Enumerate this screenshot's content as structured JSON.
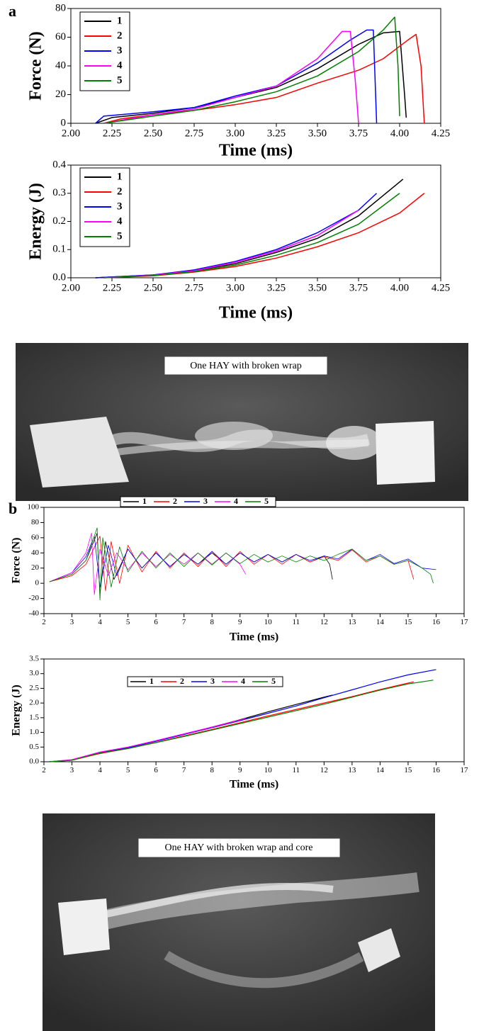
{
  "panels": [
    {
      "label": "a",
      "photo_caption": "One HAY with broken wrap"
    },
    {
      "label": "b",
      "photo_caption": "One HAY with broken wrap and core"
    }
  ],
  "chart_data": [
    {
      "type": "line",
      "xlabel": "Time (ms)",
      "ylabel": "Force (N)",
      "legend": "upper left",
      "xlim": [
        2,
        4.25
      ],
      "ylim": [
        0,
        80
      ],
      "xticks": [
        {
          "value": 2,
          "label": "2.00"
        },
        2.25,
        {
          "value": 2.5,
          "label": "2.50"
        },
        2.75,
        {
          "value": 3,
          "label": "3.00"
        },
        3.25,
        {
          "value": 3.5,
          "label": "3.50"
        },
        3.75,
        {
          "value": 4,
          "label": "4.00"
        },
        4.25
      ],
      "yticks": [
        0,
        20,
        40,
        60,
        80
      ],
      "series": [
        {
          "name": "1",
          "color": "#000000",
          "x": [
            2.15,
            2.25,
            2.5,
            2.75,
            3.0,
            3.25,
            3.5,
            3.75,
            3.9,
            4.0,
            4.03,
            4.04
          ],
          "values": [
            0,
            4,
            7,
            11,
            18,
            25,
            38,
            55,
            63,
            64,
            20,
            4
          ]
        },
        {
          "name": "2",
          "color": "#ff0000",
          "x": [
            2.2,
            2.3,
            2.5,
            2.75,
            3.0,
            3.25,
            3.5,
            3.75,
            3.9,
            4.05,
            4.1,
            4.13,
            4.15
          ],
          "values": [
            0,
            3,
            6,
            9,
            13,
            18,
            28,
            37,
            45,
            58,
            62,
            40,
            0
          ]
        },
        {
          "name": "3",
          "color": "#0000ff",
          "x": [
            2.15,
            2.2,
            2.5,
            2.75,
            3.0,
            3.25,
            3.5,
            3.7,
            3.8,
            3.84,
            3.86
          ],
          "values": [
            0,
            5,
            8,
            11,
            19,
            26,
            42,
            58,
            65,
            65,
            0
          ]
        },
        {
          "name": "4",
          "color": "#ff00ff",
          "x": [
            2.2,
            2.5,
            2.75,
            3.0,
            3.25,
            3.5,
            3.65,
            3.7,
            3.73,
            3.75
          ],
          "values": [
            0,
            6,
            10,
            18,
            26,
            45,
            64,
            64,
            30,
            0
          ]
        },
        {
          "name": "5",
          "color": "#008000",
          "x": [
            2.2,
            2.5,
            2.75,
            3.0,
            3.25,
            3.5,
            3.75,
            3.9,
            3.97,
            3.99,
            4.0
          ],
          "values": [
            0,
            5,
            9,
            15,
            22,
            33,
            50,
            65,
            74,
            40,
            5
          ]
        }
      ]
    },
    {
      "type": "line",
      "xlabel": "Time (ms)",
      "ylabel": "Energy (J)",
      "legend": "upper left",
      "xlim": [
        2,
        4.25
      ],
      "ylim": [
        0,
        0.4
      ],
      "xticks": [
        {
          "value": 2,
          "label": "2.00"
        },
        2.25,
        {
          "value": 2.5,
          "label": "2.50"
        },
        2.75,
        {
          "value": 3,
          "label": "3.00"
        },
        3.25,
        {
          "value": 3.5,
          "label": "3.50"
        },
        3.75,
        {
          "value": 4,
          "label": "4.00"
        },
        4.25
      ],
      "yticks": [
        {
          "value": 0,
          "label": "0.0"
        },
        0.1,
        0.2,
        0.3,
        0.4
      ],
      "series": [
        {
          "name": "1",
          "color": "#000000",
          "x": [
            2.15,
            2.5,
            2.75,
            3.0,
            3.25,
            3.5,
            3.75,
            4.0,
            4.02
          ],
          "values": [
            0,
            0.01,
            0.025,
            0.05,
            0.09,
            0.14,
            0.22,
            0.34,
            0.35
          ]
        },
        {
          "name": "2",
          "color": "#ff0000",
          "x": [
            2.2,
            2.5,
            2.75,
            3.0,
            3.25,
            3.5,
            3.75,
            4.0,
            4.15
          ],
          "values": [
            0,
            0.007,
            0.02,
            0.04,
            0.07,
            0.11,
            0.16,
            0.23,
            0.3
          ]
        },
        {
          "name": "3",
          "color": "#0000ff",
          "x": [
            2.15,
            2.5,
            2.75,
            3.0,
            3.25,
            3.5,
            3.75,
            3.86
          ],
          "values": [
            0,
            0.01,
            0.028,
            0.058,
            0.1,
            0.16,
            0.24,
            0.3
          ]
        },
        {
          "name": "4",
          "color": "#ff00ff",
          "x": [
            2.2,
            2.5,
            2.75,
            3.0,
            3.25,
            3.5,
            3.75
          ],
          "values": [
            0,
            0.009,
            0.025,
            0.055,
            0.095,
            0.15,
            0.24
          ]
        },
        {
          "name": "5",
          "color": "#008000",
          "x": [
            2.2,
            2.5,
            2.75,
            3.0,
            3.25,
            3.5,
            3.75,
            4.0
          ],
          "values": [
            0,
            0.008,
            0.022,
            0.045,
            0.08,
            0.125,
            0.19,
            0.3
          ]
        }
      ]
    },
    {
      "type": "line",
      "xlabel": "Time (ms)",
      "ylabel": "Force (N)",
      "legend": "upper center",
      "xlim": [
        2,
        17
      ],
      "ylim": [
        -40,
        100
      ],
      "xticks": [
        2,
        3,
        4,
        5,
        6,
        7,
        8,
        9,
        10,
        11,
        12,
        13,
        14,
        15,
        16,
        17
      ],
      "yticks": [
        -40,
        -20,
        0,
        20,
        40,
        60,
        80,
        100
      ],
      "series": [
        {
          "name": "1",
          "color": "#000000",
          "x": [
            2.2,
            3,
            3.5,
            3.9,
            4.0,
            4.2,
            4.5,
            5,
            5.5,
            6,
            6.5,
            7,
            7.5,
            8,
            8.5,
            9,
            9.5,
            10,
            10.5,
            11,
            11.5,
            12,
            12.2,
            12.3
          ],
          "values": [
            2,
            12,
            30,
            66,
            -15,
            55,
            5,
            45,
            20,
            40,
            22,
            38,
            25,
            40,
            25,
            40,
            28,
            38,
            28,
            38,
            28,
            36,
            25,
            5
          ]
        },
        {
          "name": "2",
          "color": "#ff0000",
          "x": [
            2.2,
            3,
            3.5,
            4.0,
            4.2,
            4.4,
            4.7,
            5,
            5.5,
            6,
            6.5,
            7,
            7.5,
            8,
            8.5,
            9,
            9.5,
            10,
            10.5,
            11,
            11.5,
            12,
            12.5,
            13,
            13.5,
            14,
            14.5,
            15,
            15.2
          ],
          "values": [
            2,
            10,
            25,
            62,
            -10,
            55,
            0,
            50,
            15,
            42,
            20,
            40,
            22,
            42,
            22,
            42,
            25,
            38,
            25,
            38,
            28,
            35,
            30,
            44,
            28,
            36,
            25,
            30,
            5
          ]
        },
        {
          "name": "3",
          "color": "#0000ff",
          "x": [
            2.2,
            3,
            3.5,
            3.8,
            4.0,
            4.3,
            4.6,
            5,
            5.5,
            6,
            6.5,
            7,
            7.5,
            8,
            8.5,
            9,
            9.5,
            10,
            10.5,
            11,
            11.5,
            12,
            12.5,
            13,
            13.5,
            14,
            14.5,
            15,
            15.5,
            16
          ],
          "values": [
            2,
            14,
            35,
            62,
            -5,
            50,
            10,
            45,
            20,
            40,
            22,
            38,
            25,
            42,
            25,
            40,
            28,
            38,
            28,
            38,
            30,
            36,
            32,
            45,
            30,
            38,
            26,
            32,
            20,
            18
          ]
        },
        {
          "name": "4",
          "color": "#ff00ff",
          "x": [
            2.2,
            3,
            3.5,
            3.7,
            3.8,
            4.0,
            4.3,
            4.6,
            5,
            5.5,
            6,
            6.5,
            7,
            7.5,
            8,
            8.5,
            9,
            9.2
          ],
          "values": [
            2,
            14,
            40,
            66,
            -15,
            45,
            10,
            40,
            18,
            40,
            22,
            38,
            25,
            40,
            25,
            40,
            25,
            12
          ]
        },
        {
          "name": "5",
          "color": "#008000",
          "x": [
            2.2,
            3,
            3.5,
            3.9,
            4.0,
            4.1,
            4.4,
            4.7,
            5,
            5.5,
            6,
            6.5,
            7,
            7.5,
            8,
            8.5,
            9,
            9.5,
            10,
            10.5,
            11,
            11.5,
            12,
            12.5,
            13,
            13.5,
            14,
            14.5,
            15,
            15.5,
            15.8,
            15.9
          ],
          "values": [
            2,
            12,
            30,
            73,
            -22,
            60,
            -5,
            48,
            15,
            42,
            20,
            40,
            22,
            40,
            24,
            40,
            26,
            38,
            28,
            36,
            28,
            36,
            30,
            38,
            45,
            30,
            36,
            25,
            30,
            20,
            12,
            0
          ]
        }
      ]
    },
    {
      "type": "line",
      "xlabel": "Time (ms)",
      "ylabel": "Energy (J)",
      "legend": "upper center",
      "xlim": [
        2,
        17
      ],
      "ylim": [
        0,
        3.5
      ],
      "xticks": [
        2,
        3,
        4,
        5,
        6,
        7,
        8,
        9,
        10,
        11,
        12,
        13,
        14,
        15,
        16,
        17
      ],
      "yticks": [
        {
          "value": 0,
          "label": "0.0"
        },
        0.5,
        {
          "value": 1,
          "label": "1.0"
        },
        1.5,
        {
          "value": 2,
          "label": "2.0"
        },
        2.5,
        {
          "value": 3,
          "label": "3.0"
        },
        3.5
      ],
      "series": [
        {
          "name": "1",
          "color": "#000000",
          "x": [
            2.2,
            3,
            4,
            5,
            6,
            7,
            8,
            9,
            10,
            11,
            12,
            12.3
          ],
          "values": [
            0,
            0.06,
            0.3,
            0.48,
            0.7,
            0.93,
            1.18,
            1.43,
            1.7,
            1.95,
            2.2,
            2.27
          ]
        },
        {
          "name": "2",
          "color": "#ff0000",
          "x": [
            2.2,
            3,
            4,
            5,
            6,
            7,
            8,
            9,
            10,
            11,
            12,
            13,
            14,
            15,
            15.2
          ],
          "values": [
            0,
            0.05,
            0.28,
            0.45,
            0.66,
            0.88,
            1.1,
            1.33,
            1.56,
            1.78,
            2.0,
            2.22,
            2.46,
            2.68,
            2.72
          ]
        },
        {
          "name": "3",
          "color": "#0000ff",
          "x": [
            2.2,
            3,
            4,
            5,
            6,
            7,
            8,
            9,
            10,
            11,
            12,
            13,
            14,
            15,
            16
          ],
          "values": [
            0,
            0.06,
            0.32,
            0.48,
            0.7,
            0.93,
            1.16,
            1.4,
            1.65,
            1.9,
            2.18,
            2.45,
            2.72,
            2.96,
            3.14
          ]
        },
        {
          "name": "4",
          "color": "#ff00ff",
          "x": [
            2.2,
            3,
            4,
            5,
            6,
            7,
            8,
            9,
            9.2
          ],
          "values": [
            0,
            0.07,
            0.33,
            0.5,
            0.72,
            0.95,
            1.18,
            1.42,
            1.47
          ]
        },
        {
          "name": "5",
          "color": "#008000",
          "x": [
            2.2,
            3,
            4,
            5,
            6,
            7,
            8,
            9,
            10,
            11,
            12,
            13,
            14,
            15,
            15.9
          ],
          "values": [
            0,
            0.05,
            0.3,
            0.45,
            0.65,
            0.86,
            1.08,
            1.3,
            1.52,
            1.74,
            1.96,
            2.2,
            2.44,
            2.65,
            2.78
          ]
        }
      ]
    }
  ]
}
